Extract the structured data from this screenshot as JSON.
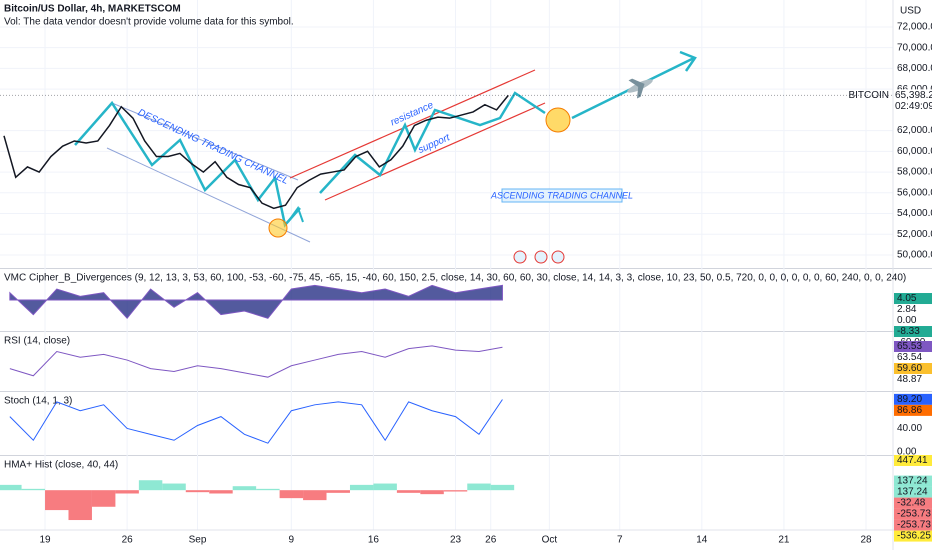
{
  "chart_data": [
    {
      "type": "line",
      "title": "Bitcoin/US Dollar, 4h, MARKETSCOM",
      "subtitle": "Vol: The data vendor doesn't provide volume data for this symbol.",
      "currency": "USD",
      "symbol": "BITCOIN",
      "last_price": {
        "value": 65398.28,
        "label": "65,398.28"
      },
      "countdown": "02:49:09",
      "annotations": [
        "DESCENDING TRADING CHANNEL",
        "resistance",
        "support",
        "ASCENDING TRADING CHANNEL"
      ],
      "color": "#131722",
      "grid": true,
      "x": [
        -3.5,
        -2.5,
        -1.5,
        -0.5,
        0.5,
        1.5,
        2.5,
        3.5,
        4.5,
        5.5,
        6.5,
        7.5,
        8.5,
        9.5,
        10.5,
        11.5,
        12.5,
        13.5,
        14.5,
        15.5,
        16.5,
        17.5,
        18.5,
        19.5,
        20.5,
        21.5,
        22.5,
        23.5,
        24.5,
        25.5,
        26.5,
        27.5,
        28.5,
        29.5,
        30.5,
        31.5,
        32.5,
        33.5,
        34.5,
        35.5,
        36.5,
        37.5,
        38.5,
        39.5
      ],
      "values": [
        61500,
        57500,
        58500,
        58000,
        59500,
        60500,
        61000,
        60800,
        61000,
        62500,
        64300,
        63200,
        61000,
        59500,
        59500,
        59800,
        58800,
        58000,
        59000,
        57500,
        56800,
        56500,
        55000,
        54500,
        54800,
        56500,
        57200,
        57800,
        58000,
        58200,
        59500,
        60000,
        58500,
        59200,
        60500,
        62500,
        63000,
        63300,
        63200,
        63500,
        63800,
        64500,
        64000,
        65400
      ],
      "xlim": [
        -3.84,
        72.3
      ],
      "xticks": [
        {
          "value": 0,
          "label": "19"
        },
        {
          "value": 7,
          "label": "26"
        },
        {
          "value": 13,
          "label": "Sep"
        },
        {
          "value": 21,
          "label": "9"
        },
        {
          "value": 28,
          "label": "16"
        },
        {
          "value": 35,
          "label": "23"
        },
        {
          "value": 38,
          "label": "26"
        },
        {
          "value": 43,
          "label": "Oct"
        },
        {
          "value": 49,
          "label": "7"
        },
        {
          "value": 56,
          "label": "14"
        },
        {
          "value": 63,
          "label": "21"
        },
        {
          "value": 70,
          "label": "28"
        }
      ],
      "ylim": [
        48745,
        74600
      ],
      "yticks": [
        {
          "value": 72000,
          "label": "72,000.00"
        },
        {
          "value": 70000,
          "label": "70,000.00"
        },
        {
          "value": 68000,
          "label": "68,000.00"
        },
        {
          "value": 66000,
          "label": "66,000.00"
        },
        {
          "value": 62000,
          "label": "62,000.00"
        },
        {
          "value": 60000,
          "label": "60,000.00"
        },
        {
          "value": 58000,
          "label": "58,000.00"
        },
        {
          "value": 56000,
          "label": "56,000.00"
        },
        {
          "value": 54000,
          "label": "54,000.00"
        },
        {
          "value": 52000,
          "label": "52,000.00"
        },
        {
          "value": 50000,
          "label": "50,000.00"
        }
      ]
    },
    {
      "type": "area",
      "title": "VMC Cipher_B_Divergences (9, 12, 13, 3, 53, 60, 100, -53, -60, -75, 45, -65, 15, -40, 60, 150, 2.5, close, 14, 30, 60, 60, 30, close, 14, 14, 3, 3, close, 10, 23, 50, 0.5, 720, 0, 0, 0, 0, 0, 0, 60, 240, 0, 0, 240)",
      "color": "#1a237e",
      "x": [
        -3,
        -1,
        1,
        3,
        5,
        7,
        9,
        11,
        13,
        15,
        17,
        19,
        21,
        23,
        25,
        27,
        29,
        31,
        33,
        35,
        37,
        39
      ],
      "values": [
        20,
        -40,
        30,
        10,
        20,
        -50,
        30,
        -20,
        20,
        -40,
        -30,
        -50,
        30,
        40,
        30,
        20,
        30,
        10,
        40,
        20,
        30,
        40
      ],
      "ylim": [
        -82,
        82
      ],
      "labels": [
        {
          "value": 4.05,
          "label": "4.05",
          "color": "#22ab94"
        },
        {
          "value": 2.84,
          "label": "2.84"
        },
        {
          "value": 0,
          "label": "0.00"
        },
        {
          "value": -8.33,
          "label": "-8.33",
          "color": "#22ab94"
        },
        {
          "value": -60,
          "label": "-60.00"
        }
      ]
    },
    {
      "type": "line",
      "title": "RSI (14, close)",
      "color": "#7e57c2",
      "x": [
        -3,
        -1,
        1,
        3,
        5,
        7,
        9,
        11,
        13,
        15,
        17,
        19,
        21,
        23,
        25,
        27,
        29,
        31,
        33,
        35,
        37,
        39
      ],
      "values": [
        50,
        45,
        62,
        58,
        60,
        56,
        50,
        48,
        52,
        50,
        47,
        44,
        52,
        56,
        60,
        62,
        58,
        64,
        66,
        63,
        62,
        65
      ],
      "ylim": [
        35,
        75
      ],
      "labels": [
        {
          "value": 65.53,
          "label": "65.53",
          "color": "#7e57c2"
        },
        {
          "value": 63.54,
          "label": "63.54"
        },
        {
          "value": 59.6,
          "label": "59.60",
          "color": "#fbc02d"
        },
        {
          "value": 48.87,
          "label": "48.87"
        }
      ]
    },
    {
      "type": "line",
      "title": "Stoch (14, 1, 3)",
      "color": "#2962ff",
      "x": [
        -3,
        -1,
        1,
        3,
        5,
        7,
        9,
        11,
        13,
        15,
        17,
        19,
        21,
        23,
        25,
        27,
        29,
        31,
        33,
        35,
        37,
        39
      ],
      "values": [
        60,
        20,
        85,
        70,
        80,
        40,
        30,
        20,
        45,
        60,
        30,
        15,
        70,
        80,
        85,
        80,
        20,
        85,
        70,
        60,
        30,
        89
      ],
      "ylim": [
        -5,
        100
      ],
      "labels": [
        {
          "value": 89.2,
          "label": "89.20",
          "color": "#2962ff"
        },
        {
          "value": 86.86,
          "label": "86.86",
          "color": "#ff6d00"
        },
        {
          "value": 40,
          "label": "40.00"
        },
        {
          "value": 0,
          "label": "0.00"
        }
      ]
    },
    {
      "type": "bar",
      "title": "HMA+ Hist (close, 40, 44)",
      "positive_color": "#8ee8d3",
      "negative_color": "#f77c80",
      "x": [
        -3,
        -1,
        1,
        3,
        5,
        7,
        9,
        11,
        13,
        15,
        17,
        19,
        21,
        23,
        25,
        27,
        29,
        31,
        33,
        35,
        37,
        39
      ],
      "values": [
        80,
        20,
        -300,
        -450,
        -250,
        -50,
        150,
        100,
        -30,
        -50,
        60,
        20,
        -120,
        -150,
        -40,
        80,
        100,
        -40,
        -60,
        -20,
        100,
        80
      ],
      "ylim": [
        -600,
        500
      ],
      "labels": [
        {
          "value": 447.41,
          "label": "447.41",
          "color": "#ffeb3b"
        },
        {
          "value": 137.24,
          "label": "137.24",
          "color": "#8ee8d3"
        },
        {
          "value": 137.24,
          "label": "137.24",
          "color": "#8ee8d3"
        },
        {
          "value": -32.48,
          "label": "-32.48",
          "color": "#f77c80"
        },
        {
          "value": -253.73,
          "label": "-253.73",
          "color": "#f77c80"
        },
        {
          "value": -253.73,
          "label": "-253.73",
          "color": "#f77c80"
        },
        {
          "value": -536.25,
          "label": "-536.25",
          "color": "#ffeb3b"
        }
      ]
    }
  ]
}
